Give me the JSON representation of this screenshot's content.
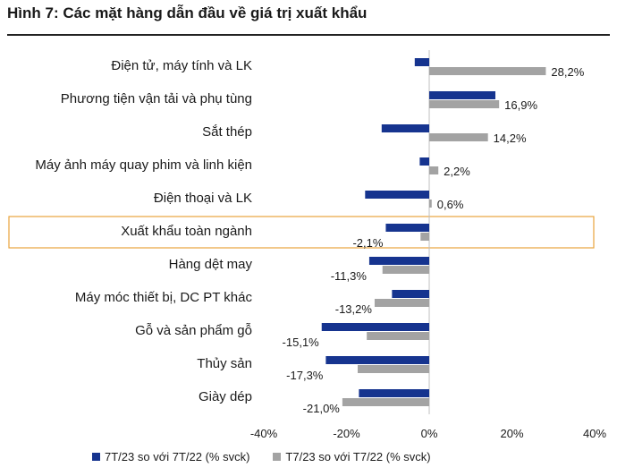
{
  "title": "Hình 7: Các mặt hàng dẫn đầu về giá trị xuất khẩu",
  "colors": {
    "series1": "#16348f",
    "series2": "#a3a3a3",
    "highlight": "#e8a33d"
  },
  "chart_data": {
    "type": "bar",
    "orientation": "horizontal",
    "categories": [
      "Điện tử, máy tính và LK",
      "Phương tiện vận tải và phụ tùng",
      "Sắt thép",
      "Máy ảnh máy quay phim và linh kiện",
      "Điện thoại và LK",
      "Xuất khẩu toàn ngành",
      "Hàng dệt may",
      "Máy móc thiết bị, DC PT khác",
      "Gỗ và sản phẩm gỗ",
      "Thủy sản",
      "Giày dép"
    ],
    "highlighted_category": "Xuất khẩu toàn ngành",
    "series": [
      {
        "name": "7T/23 so với 7T/22 (% svck)",
        "values": [
          -3.5,
          16.0,
          -11.5,
          -2.3,
          -15.5,
          -10.5,
          -14.5,
          -9.0,
          -26.0,
          -25.0,
          -17.0
        ]
      },
      {
        "name": "T7/23 so với T7/22 (% svck)",
        "values": [
          28.2,
          16.9,
          14.2,
          2.2,
          0.6,
          -2.1,
          -11.3,
          -13.2,
          -15.1,
          -17.3,
          -21.0
        ],
        "labels": [
          "28,2%",
          "16,9%",
          "14,2%",
          "2,2%",
          "0,6%",
          "-2,1%",
          "-11,3%",
          "-13,2%",
          "-15,1%",
          "-17,3%",
          "-21,0%"
        ]
      }
    ],
    "xlim": [
      -40,
      40
    ],
    "xticks": [
      -40,
      -20,
      0,
      20,
      40
    ],
    "xtick_labels": [
      "-40%",
      "-20%",
      "0%",
      "20%",
      "40%"
    ],
    "grid": false,
    "legend_position": "bottom"
  }
}
